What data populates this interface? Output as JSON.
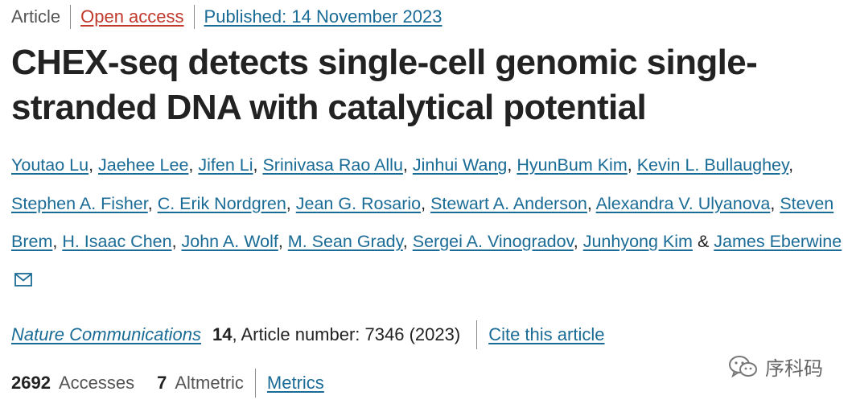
{
  "header": {
    "article_type": "Article",
    "open_access": "Open access",
    "published": "Published: 14 November 2023"
  },
  "title": "CHEX-seq detects single-cell genomic single-stranded DNA with catalytical potential",
  "authors": [
    "Youtao Lu",
    "Jaehee Lee",
    "Jifen Li",
    "Srinivasa Rao Allu",
    "Jinhui Wang",
    "HyunBum Kim",
    "Kevin L. Bullaughey",
    "Stephen A. Fisher",
    "C. Erik Nordgren",
    "Jean G. Rosario",
    "Stewart A. Anderson",
    "Alexandra V. Ulyanova",
    "Steven Brem",
    "H. Isaac Chen",
    "John A. Wolf",
    "M. Sean Grady",
    "Sergei A. Vinogradov",
    "Junhyong Kim",
    "James Eberwine"
  ],
  "authors_separator": ", ",
  "authors_ampersand": "&",
  "corresponding_icon": "mail-icon",
  "journal": {
    "name": "Nature Communications",
    "volume": "14",
    "article_number": ", Article number: 7346 (2023)",
    "cite_label": "Cite this article"
  },
  "metrics": {
    "accesses_count": "2692",
    "accesses_label": "Accesses",
    "altmetric_count": "7",
    "altmetric_label": "Altmetric",
    "metrics_link": "Metrics"
  },
  "watermark": {
    "icon": "wechat-icon",
    "text": "序科码"
  },
  "colors": {
    "link": "#1a6b96",
    "open_access": "#c0392b",
    "text": "#222222",
    "muted": "#555555"
  }
}
